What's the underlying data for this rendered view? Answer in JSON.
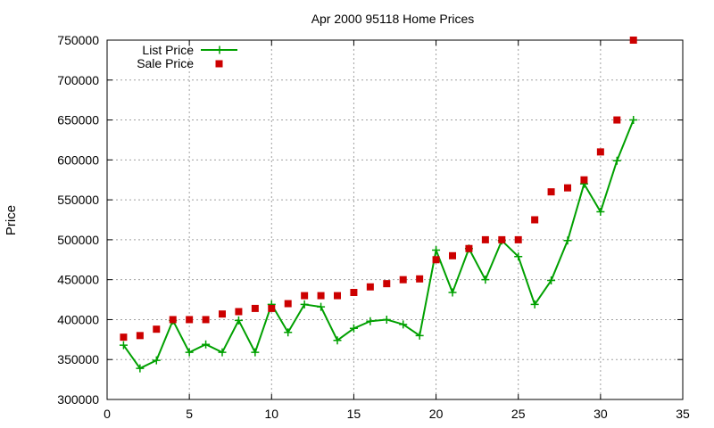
{
  "chart_data": {
    "type": "line",
    "title": "Apr 2000 95118 Home Prices",
    "xlabel": "",
    "ylabel": "Price",
    "xlim": [
      0,
      35
    ],
    "ylim": [
      300000,
      750000
    ],
    "x_ticks": [
      "0",
      "5",
      "10",
      "15",
      "20",
      "25",
      "30",
      "35"
    ],
    "y_ticks": [
      "300000",
      "350000",
      "400000",
      "450000",
      "500000",
      "550000",
      "600000",
      "650000",
      "700000",
      "750000"
    ],
    "grid": true,
    "legend_position": "top-left",
    "x": [
      1,
      2,
      3,
      4,
      5,
      6,
      7,
      8,
      9,
      10,
      11,
      12,
      13,
      14,
      15,
      16,
      17,
      18,
      19,
      20,
      21,
      22,
      23,
      24,
      25,
      26,
      27,
      28,
      29,
      30,
      31,
      32
    ],
    "series": [
      {
        "name": "List Price",
        "style": "linespoints",
        "color": "#00a000",
        "values": [
          368000,
          339000,
          349000,
          399000,
          359000,
          369000,
          359000,
          399000,
          359000,
          419000,
          384000,
          419000,
          416000,
          374000,
          389000,
          398000,
          400000,
          394000,
          380000,
          487000,
          434000,
          489000,
          450000,
          499000,
          479000,
          419000,
          449000,
          499000,
          570000,
          535000,
          599000,
          650000
        ]
      },
      {
        "name": "Sale Price",
        "style": "points",
        "color": "#cc0000",
        "values": [
          378000,
          380000,
          388000,
          400000,
          400000,
          400000,
          407000,
          410000,
          414000,
          414000,
          420000,
          430000,
          430000,
          430000,
          434000,
          441000,
          445000,
          450000,
          451000,
          475000,
          480000,
          489000,
          500000,
          500000,
          500000,
          525000,
          560000,
          565000,
          575000,
          610000,
          650000,
          750000
        ]
      }
    ]
  }
}
